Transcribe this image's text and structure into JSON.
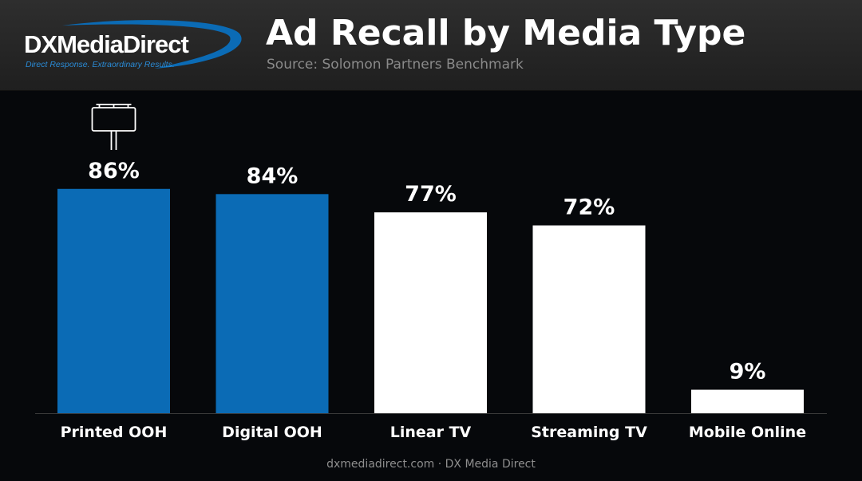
{
  "header": {
    "logo": {
      "text": "DXMediaDirect",
      "tagline": "Direct Response. Extraordinary Results."
    },
    "title": "Ad Recall by Media Type",
    "subtitle": "Source: Solomon Partners Benchmark"
  },
  "chart_data": {
    "type": "bar",
    "categories": [
      "Printed OOH",
      "Digital OOH",
      "Linear TV",
      "Streaming TV",
      "Mobile Online"
    ],
    "values": [
      86,
      84,
      77,
      72,
      9
    ],
    "data_labels": [
      "86%",
      "84%",
      "77%",
      "72%",
      "9%"
    ],
    "bar_colors": [
      "#0b6bb5",
      "#0b6bb5",
      "#ffffff",
      "#ffffff",
      "#ffffff"
    ],
    "annotation_icon": "billboard-icon",
    "ylim": [
      0,
      100
    ],
    "grid": false
  },
  "colors": {
    "background": "#06080b",
    "header": "#262626",
    "accent_blue": "#0b6bb5"
  },
  "footer": "dxmediadirect.com · DX Media Direct"
}
